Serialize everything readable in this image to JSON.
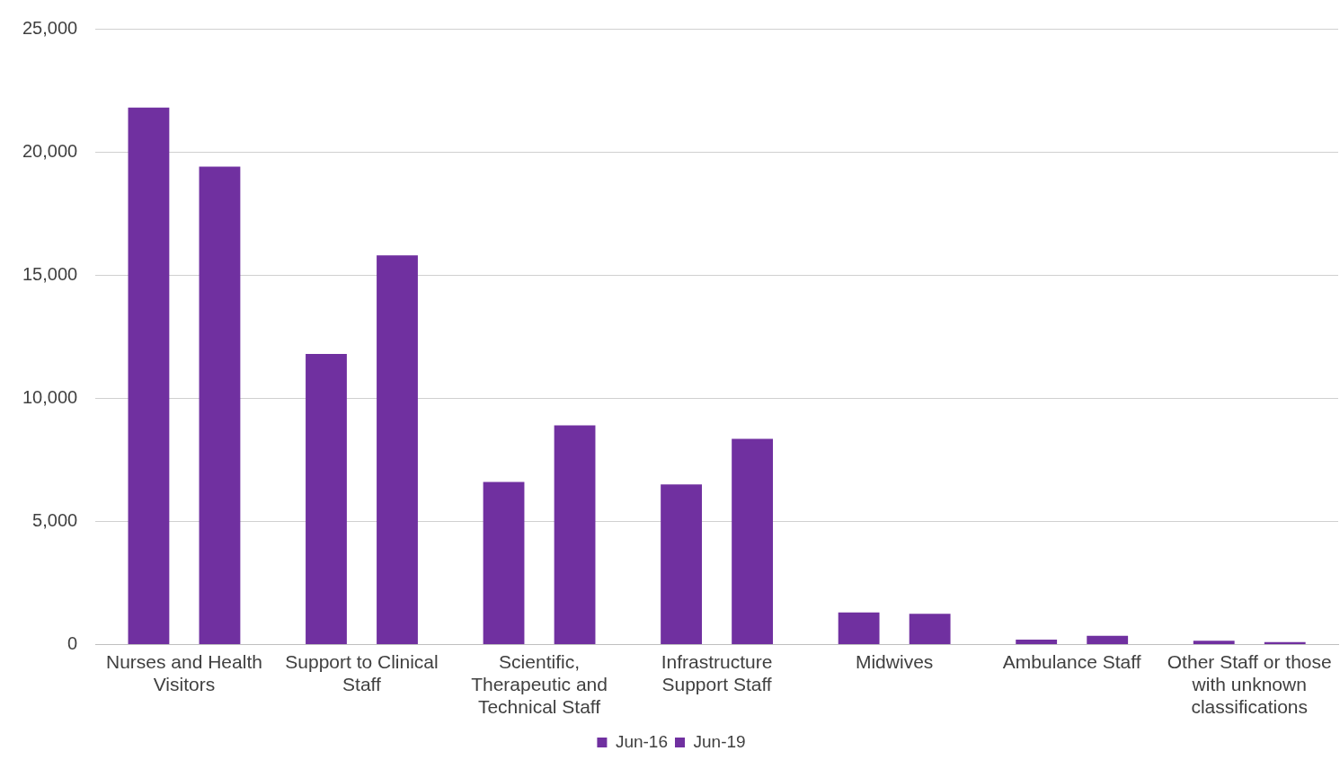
{
  "chart_data": {
    "type": "bar",
    "categories": [
      "Nurses and Health Visitors",
      "Support to Clinical Staff",
      "Scientific, Therapeutic and Technical Staff",
      "Infrastructure Support Staff",
      "Midwives",
      "Ambulance Staff",
      "Other Staff or those with unknown classifications"
    ],
    "series": [
      {
        "name": "Jun-16",
        "color": "#7030a0",
        "values": [
          21800,
          11800,
          6600,
          6500,
          1300,
          200,
          150
        ]
      },
      {
        "name": "Jun-19",
        "color": "#7030a0",
        "values": [
          19400,
          15800,
          8900,
          8350,
          1250,
          350,
          100
        ]
      }
    ],
    "ylim": [
      0,
      25000
    ],
    "yticks": [
      {
        "value": 0,
        "label": "0"
      },
      {
        "value": 5000,
        "label": "5,000"
      },
      {
        "value": 10000,
        "label": "10,000"
      },
      {
        "value": 15000,
        "label": "15,000"
      },
      {
        "value": 20000,
        "label": "20,000"
      },
      {
        "value": 25000,
        "label": "25,000"
      }
    ],
    "grid": "y",
    "legend": "bottom"
  }
}
